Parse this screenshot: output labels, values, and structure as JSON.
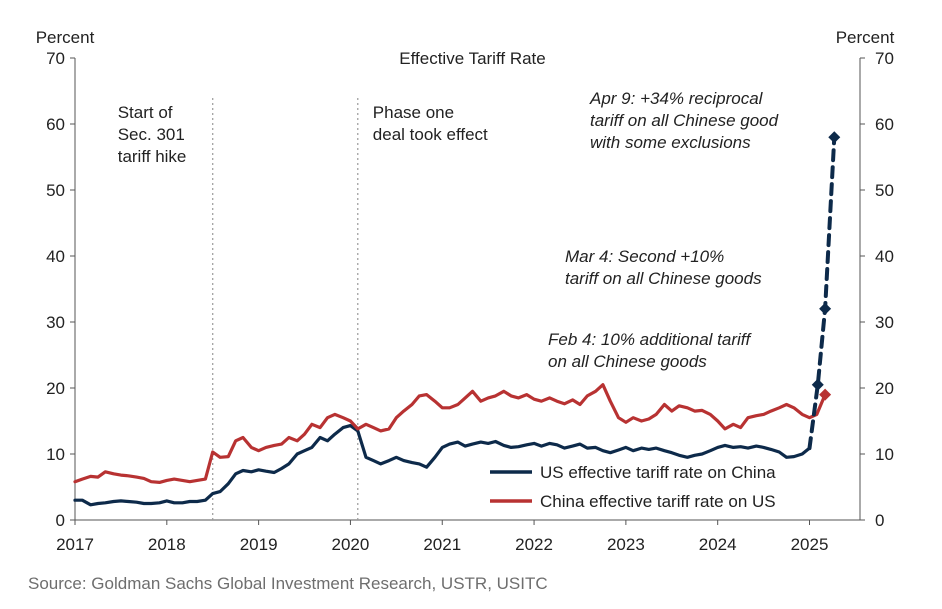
{
  "chart_data": {
    "type": "line",
    "title": "Effective Tariff Rate",
    "ylabel_left": "Percent",
    "ylabel_right": "Percent",
    "ylim": [
      0,
      70
    ],
    "y_ticks": [
      0,
      10,
      20,
      30,
      40,
      50,
      60,
      70
    ],
    "x_ticks": [
      "2017",
      "2018",
      "2019",
      "2020",
      "2021",
      "2022",
      "2023",
      "2024",
      "2025"
    ],
    "xlim": [
      2017.0,
      2025.55
    ],
    "legend_position": "bottom-right",
    "grid": false,
    "series": [
      {
        "name": "US effective tariff rate on China",
        "color": "#0d2a4a",
        "x": [
          2017.0,
          2017.08,
          2017.17,
          2017.25,
          2017.33,
          2017.42,
          2017.5,
          2017.58,
          2017.67,
          2017.75,
          2017.83,
          2017.92,
          2018.0,
          2018.08,
          2018.17,
          2018.25,
          2018.33,
          2018.42,
          2018.5,
          2018.58,
          2018.67,
          2018.75,
          2018.83,
          2018.92,
          2019.0,
          2019.08,
          2019.17,
          2019.25,
          2019.33,
          2019.42,
          2019.5,
          2019.58,
          2019.67,
          2019.75,
          2019.83,
          2019.92,
          2020.0,
          2020.08,
          2020.17,
          2020.25,
          2020.33,
          2020.42,
          2020.5,
          2020.58,
          2020.67,
          2020.75,
          2020.83,
          2020.92,
          2021.0,
          2021.08,
          2021.17,
          2021.25,
          2021.33,
          2021.42,
          2021.5,
          2021.58,
          2021.67,
          2021.75,
          2021.83,
          2021.92,
          2022.0,
          2022.08,
          2022.17,
          2022.25,
          2022.33,
          2022.42,
          2022.5,
          2022.58,
          2022.67,
          2022.75,
          2022.83,
          2022.92,
          2023.0,
          2023.08,
          2023.17,
          2023.25,
          2023.33,
          2023.42,
          2023.5,
          2023.58,
          2023.67,
          2023.75,
          2023.83,
          2023.92,
          2024.0,
          2024.08,
          2024.17,
          2024.25,
          2024.33,
          2024.42,
          2024.5,
          2024.58,
          2024.67,
          2024.75,
          2024.83,
          2024.92,
          2025.0
        ],
        "values": [
          3.0,
          3.0,
          2.3,
          2.5,
          2.6,
          2.8,
          2.9,
          2.8,
          2.7,
          2.5,
          2.5,
          2.6,
          2.9,
          2.6,
          2.6,
          2.8,
          2.8,
          3.0,
          4.0,
          4.3,
          5.5,
          7.0,
          7.5,
          7.3,
          7.6,
          7.4,
          7.2,
          7.8,
          8.5,
          10.0,
          10.5,
          11.0,
          12.5,
          12.0,
          13.0,
          14.0,
          14.3,
          13.5,
          9.5,
          9.0,
          8.5,
          9.0,
          9.5,
          9.0,
          8.7,
          8.5,
          8.0,
          9.5,
          11.0,
          11.5,
          11.8,
          11.2,
          11.5,
          11.8,
          11.6,
          11.9,
          11.3,
          11.0,
          11.1,
          11.4,
          11.6,
          11.2,
          11.6,
          11.4,
          10.9,
          11.2,
          11.5,
          10.9,
          11.0,
          10.5,
          10.2,
          10.6,
          11.0,
          10.5,
          10.9,
          10.7,
          10.9,
          10.5,
          10.2,
          9.8,
          9.5,
          9.8,
          10.0,
          10.5,
          11.0,
          11.3,
          11.0,
          11.1,
          10.9,
          11.2,
          11.0,
          10.7,
          10.3,
          9.5,
          9.6,
          10.0,
          10.9
        ]
      },
      {
        "name": "China effective tariff rate on US",
        "color": "#b83232",
        "x": [
          2017.0,
          2017.08,
          2017.17,
          2017.25,
          2017.33,
          2017.42,
          2017.5,
          2017.58,
          2017.67,
          2017.75,
          2017.83,
          2017.92,
          2018.0,
          2018.08,
          2018.17,
          2018.25,
          2018.33,
          2018.42,
          2018.5,
          2018.58,
          2018.67,
          2018.75,
          2018.83,
          2018.92,
          2019.0,
          2019.08,
          2019.17,
          2019.25,
          2019.33,
          2019.42,
          2019.5,
          2019.58,
          2019.67,
          2019.75,
          2019.83,
          2019.92,
          2020.0,
          2020.08,
          2020.17,
          2020.25,
          2020.33,
          2020.42,
          2020.5,
          2020.58,
          2020.67,
          2020.75,
          2020.83,
          2020.92,
          2021.0,
          2021.08,
          2021.17,
          2021.25,
          2021.33,
          2021.42,
          2021.5,
          2021.58,
          2021.67,
          2021.75,
          2021.83,
          2021.92,
          2022.0,
          2022.08,
          2022.17,
          2022.25,
          2022.33,
          2022.42,
          2022.5,
          2022.58,
          2022.67,
          2022.75,
          2022.83,
          2022.92,
          2023.0,
          2023.08,
          2023.17,
          2023.25,
          2023.33,
          2023.42,
          2023.5,
          2023.58,
          2023.67,
          2023.75,
          2023.83,
          2023.92,
          2024.0,
          2024.08,
          2024.17,
          2024.25,
          2024.33,
          2024.42,
          2024.5,
          2024.58,
          2024.67,
          2024.75,
          2024.83,
          2024.92,
          2025.0,
          2025.08,
          2025.17
        ],
        "values": [
          5.8,
          6.2,
          6.6,
          6.5,
          7.3,
          7.0,
          6.8,
          6.7,
          6.5,
          6.3,
          5.8,
          5.7,
          6.0,
          6.2,
          6.0,
          5.8,
          6.0,
          6.2,
          10.3,
          9.5,
          9.6,
          12.0,
          12.5,
          11.0,
          10.5,
          11.0,
          11.3,
          11.5,
          12.5,
          12.0,
          13.0,
          14.5,
          14.0,
          15.5,
          16.0,
          15.5,
          15.0,
          13.8,
          14.5,
          14.0,
          13.5,
          13.8,
          15.5,
          16.5,
          17.5,
          18.8,
          19.0,
          18.0,
          17.0,
          17.0,
          17.5,
          18.5,
          19.5,
          18.0,
          18.5,
          18.8,
          19.5,
          18.8,
          18.5,
          19.0,
          18.3,
          18.0,
          18.5,
          18.0,
          17.6,
          18.2,
          17.5,
          18.8,
          19.5,
          20.5,
          18.0,
          15.5,
          14.8,
          15.5,
          15.0,
          15.3,
          16.0,
          17.5,
          16.5,
          17.3,
          17.0,
          16.5,
          16.6,
          16.0,
          15.0,
          13.8,
          14.5,
          14.0,
          15.5,
          15.8,
          16.0,
          16.5,
          17.0,
          17.5,
          17.0,
          16.0,
          15.5,
          16.0,
          19.0
        ]
      },
      {
        "name": "US effective tariff rate on China (projected)",
        "color": "#0d2a4a",
        "style": "dashed",
        "x": [
          2025.0,
          2025.09,
          2025.17,
          2025.27
        ],
        "values": [
          10.9,
          20.5,
          32.0,
          58.0
        ]
      }
    ],
    "vertical_lines": [
      {
        "x": 2018.5,
        "label": [
          "Start of",
          "Sec. 301",
          "tariff hike"
        ]
      },
      {
        "x": 2020.08,
        "label": [
          "Phase one",
          "deal took effect"
        ]
      }
    ],
    "annotations": [
      {
        "lines": [
          "Apr 9: +34% reciprocal",
          "tariff on all Chinese good",
          "with some exclusions"
        ]
      },
      {
        "lines": [
          "Mar 4: Second +10%",
          "tariff on all Chinese goods"
        ]
      },
      {
        "lines": [
          "Feb 4: 10% additional tariff",
          "on all Chinese goods"
        ]
      }
    ]
  },
  "source": "Source: Goldman Sachs Global Investment Research, USTR, USITC"
}
